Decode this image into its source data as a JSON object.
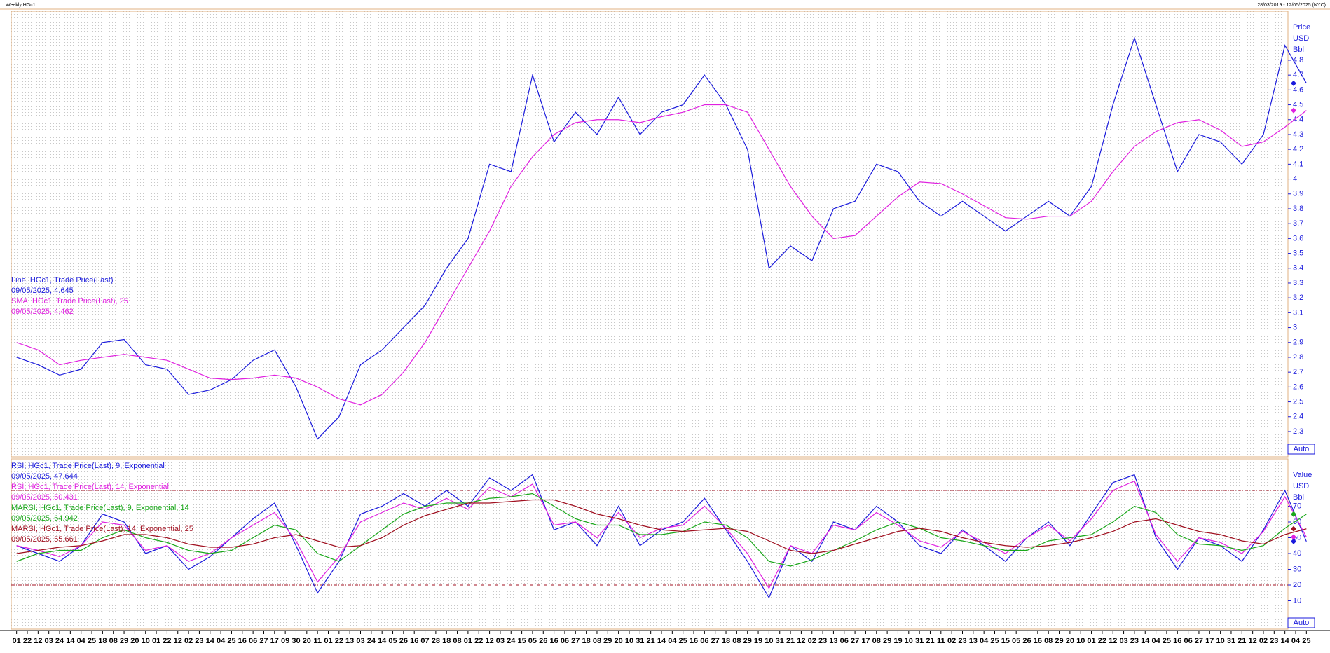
{
  "header": {
    "title": "Weekly HGc1",
    "range": "28/03/2019 - 12/05/2025 (NYC)"
  },
  "auto_button": "Auto",
  "x_axis": {
    "labels": [
      "01",
      "22",
      "12",
      "03",
      "24",
      "14",
      "04",
      "25",
      "18",
      "08",
      "29",
      "20",
      "10",
      "01",
      "22",
      "12",
      "02",
      "23",
      "14",
      "04",
      "25",
      "16",
      "06",
      "27",
      "17",
      "09",
      "30",
      "20",
      "11",
      "01",
      "22",
      "13",
      "03",
      "24",
      "14",
      "05",
      "26",
      "16",
      "07",
      "28",
      "18",
      "08",
      "01",
      "22",
      "12",
      "03",
      "24",
      "15",
      "05",
      "26",
      "16",
      "06",
      "27",
      "18",
      "08",
      "29",
      "20",
      "10",
      "31",
      "21",
      "14",
      "04",
      "25",
      "16",
      "06",
      "27",
      "18",
      "08",
      "29",
      "19",
      "10",
      "31",
      "21",
      "12",
      "02",
      "23",
      "13",
      "06",
      "27",
      "17",
      "08",
      "29",
      "19",
      "10",
      "31",
      "21",
      "11",
      "02",
      "23",
      "13",
      "04",
      "25",
      "15",
      "05",
      "26",
      "16",
      "08",
      "29",
      "20",
      "10",
      "01",
      "22",
      "12",
      "03",
      "23",
      "14",
      "04",
      "25",
      "16",
      "06",
      "27",
      "17",
      "10",
      "31",
      "21",
      "12",
      "02",
      "23",
      "14",
      "04",
      "25"
    ]
  },
  "chart_data": [
    {
      "type": "line",
      "axis_title": [
        "Price",
        "USD",
        "Bbl"
      ],
      "ylim": [
        2.13,
        5.13
      ],
      "yticks": [
        2.3,
        2.4,
        2.5,
        2.6,
        2.7,
        2.8,
        2.9,
        3,
        3.1,
        3.2,
        3.3,
        3.4,
        3.5,
        3.6,
        3.7,
        3.8,
        3.9,
        4,
        4.1,
        4.2,
        4.3,
        4.4,
        4.5,
        4.6,
        4.7,
        4.8
      ],
      "series": [
        {
          "name": "Line, HGc1, Trade Price(Last)",
          "last": "09/05/2025, 4.645",
          "color": "#1a1adc",
          "values": [
            2.8,
            2.75,
            2.68,
            2.72,
            2.9,
            2.92,
            2.75,
            2.72,
            2.55,
            2.58,
            2.65,
            2.78,
            2.85,
            2.6,
            2.25,
            2.4,
            2.75,
            2.85,
            3.0,
            3.15,
            3.4,
            3.6,
            4.1,
            4.05,
            4.7,
            4.25,
            4.45,
            4.3,
            4.55,
            4.3,
            4.45,
            4.5,
            4.7,
            4.5,
            4.2,
            3.4,
            3.55,
            3.45,
            3.8,
            3.85,
            4.1,
            4.05,
            3.85,
            3.75,
            3.85,
            3.75,
            3.65,
            3.75,
            3.85,
            3.75,
            3.95,
            4.5,
            4.95,
            4.5,
            4.05,
            4.3,
            4.25,
            4.1,
            4.3,
            4.9,
            4.645
          ]
        },
        {
          "name": "SMA, HGc1, Trade Price(Last),  25",
          "last": "09/05/2025, 4.462",
          "color": "#e020e0",
          "values": [
            2.9,
            2.85,
            2.75,
            2.78,
            2.8,
            2.82,
            2.8,
            2.78,
            2.72,
            2.66,
            2.65,
            2.66,
            2.68,
            2.66,
            2.6,
            2.52,
            2.48,
            2.55,
            2.7,
            2.9,
            3.15,
            3.4,
            3.65,
            3.95,
            4.15,
            4.3,
            4.38,
            4.4,
            4.4,
            4.38,
            4.42,
            4.45,
            4.5,
            4.5,
            4.45,
            4.2,
            3.95,
            3.75,
            3.6,
            3.62,
            3.75,
            3.88,
            3.98,
            3.97,
            3.9,
            3.82,
            3.74,
            3.73,
            3.75,
            3.75,
            3.85,
            4.05,
            4.22,
            4.32,
            4.38,
            4.4,
            4.33,
            4.22,
            4.25,
            4.35,
            4.462
          ]
        }
      ]
    },
    {
      "type": "line",
      "axis_title": [
        "Value",
        "USD",
        "Bbl"
      ],
      "ylim": [
        -8,
        100
      ],
      "yticks": [
        10,
        20,
        30,
        40,
        50,
        60,
        70
      ],
      "ref_lines": [
        80,
        20
      ],
      "ref_color": "#a01020",
      "series": [
        {
          "name": "RSI, HGc1, Trade Price(Last),  9, Exponential",
          "last": "09/05/2025, 47.644",
          "color": "#1a1adc",
          "values": [
            45,
            40,
            35,
            45,
            65,
            60,
            40,
            45,
            30,
            38,
            50,
            62,
            72,
            45,
            15,
            35,
            65,
            70,
            78,
            70,
            80,
            70,
            88,
            80,
            90,
            55,
            60,
            45,
            70,
            45,
            55,
            60,
            75,
            55,
            35,
            12,
            45,
            35,
            60,
            55,
            70,
            60,
            45,
            40,
            55,
            45,
            35,
            50,
            60,
            45,
            65,
            85,
            90,
            50,
            30,
            50,
            45,
            35,
            55,
            80,
            47.644
          ]
        },
        {
          "name": "RSI, HGc1, Trade Price(Last),  14, Exponential",
          "last": "09/05/2025, 50.431",
          "color": "#e020e0",
          "values": [
            45,
            42,
            38,
            45,
            60,
            58,
            42,
            45,
            35,
            40,
            50,
            58,
            66,
            48,
            22,
            38,
            60,
            66,
            72,
            68,
            75,
            68,
            82,
            76,
            84,
            58,
            60,
            50,
            66,
            50,
            56,
            58,
            70,
            56,
            40,
            18,
            45,
            40,
            58,
            55,
            66,
            58,
            48,
            44,
            54,
            47,
            40,
            50,
            58,
            48,
            62,
            80,
            86,
            52,
            35,
            50,
            47,
            40,
            54,
            76,
            50.431
          ]
        },
        {
          "name": "MARSI, HGc1, Trade Price(Last),  9, Exponential, 14",
          "last": "09/05/2025, 64.942",
          "color": "#1aa81a",
          "values": [
            35,
            40,
            42,
            42,
            50,
            55,
            50,
            47,
            42,
            40,
            42,
            50,
            58,
            55,
            40,
            35,
            45,
            55,
            65,
            70,
            72,
            72,
            75,
            76,
            78,
            70,
            62,
            58,
            58,
            52,
            52,
            54,
            60,
            58,
            50,
            35,
            32,
            36,
            42,
            48,
            55,
            60,
            56,
            50,
            48,
            45,
            42,
            42,
            48,
            50,
            52,
            60,
            70,
            66,
            52,
            46,
            45,
            42,
            45,
            56,
            64.942
          ]
        },
        {
          "name": "MARSI, HGc1, Trade Price(Last),  14, Exponential, 25",
          "last": "09/05/2025, 55.661",
          "color": "#a01020",
          "values": [
            40,
            42,
            44,
            45,
            48,
            52,
            52,
            50,
            46,
            44,
            44,
            46,
            50,
            52,
            48,
            44,
            45,
            50,
            58,
            64,
            68,
            72,
            72,
            73,
            74,
            74,
            70,
            65,
            62,
            58,
            55,
            54,
            55,
            56,
            54,
            48,
            42,
            40,
            42,
            46,
            50,
            54,
            56,
            54,
            50,
            47,
            45,
            44,
            45,
            47,
            50,
            54,
            60,
            62,
            58,
            54,
            52,
            48,
            46,
            52,
            55.661
          ]
        }
      ]
    }
  ]
}
